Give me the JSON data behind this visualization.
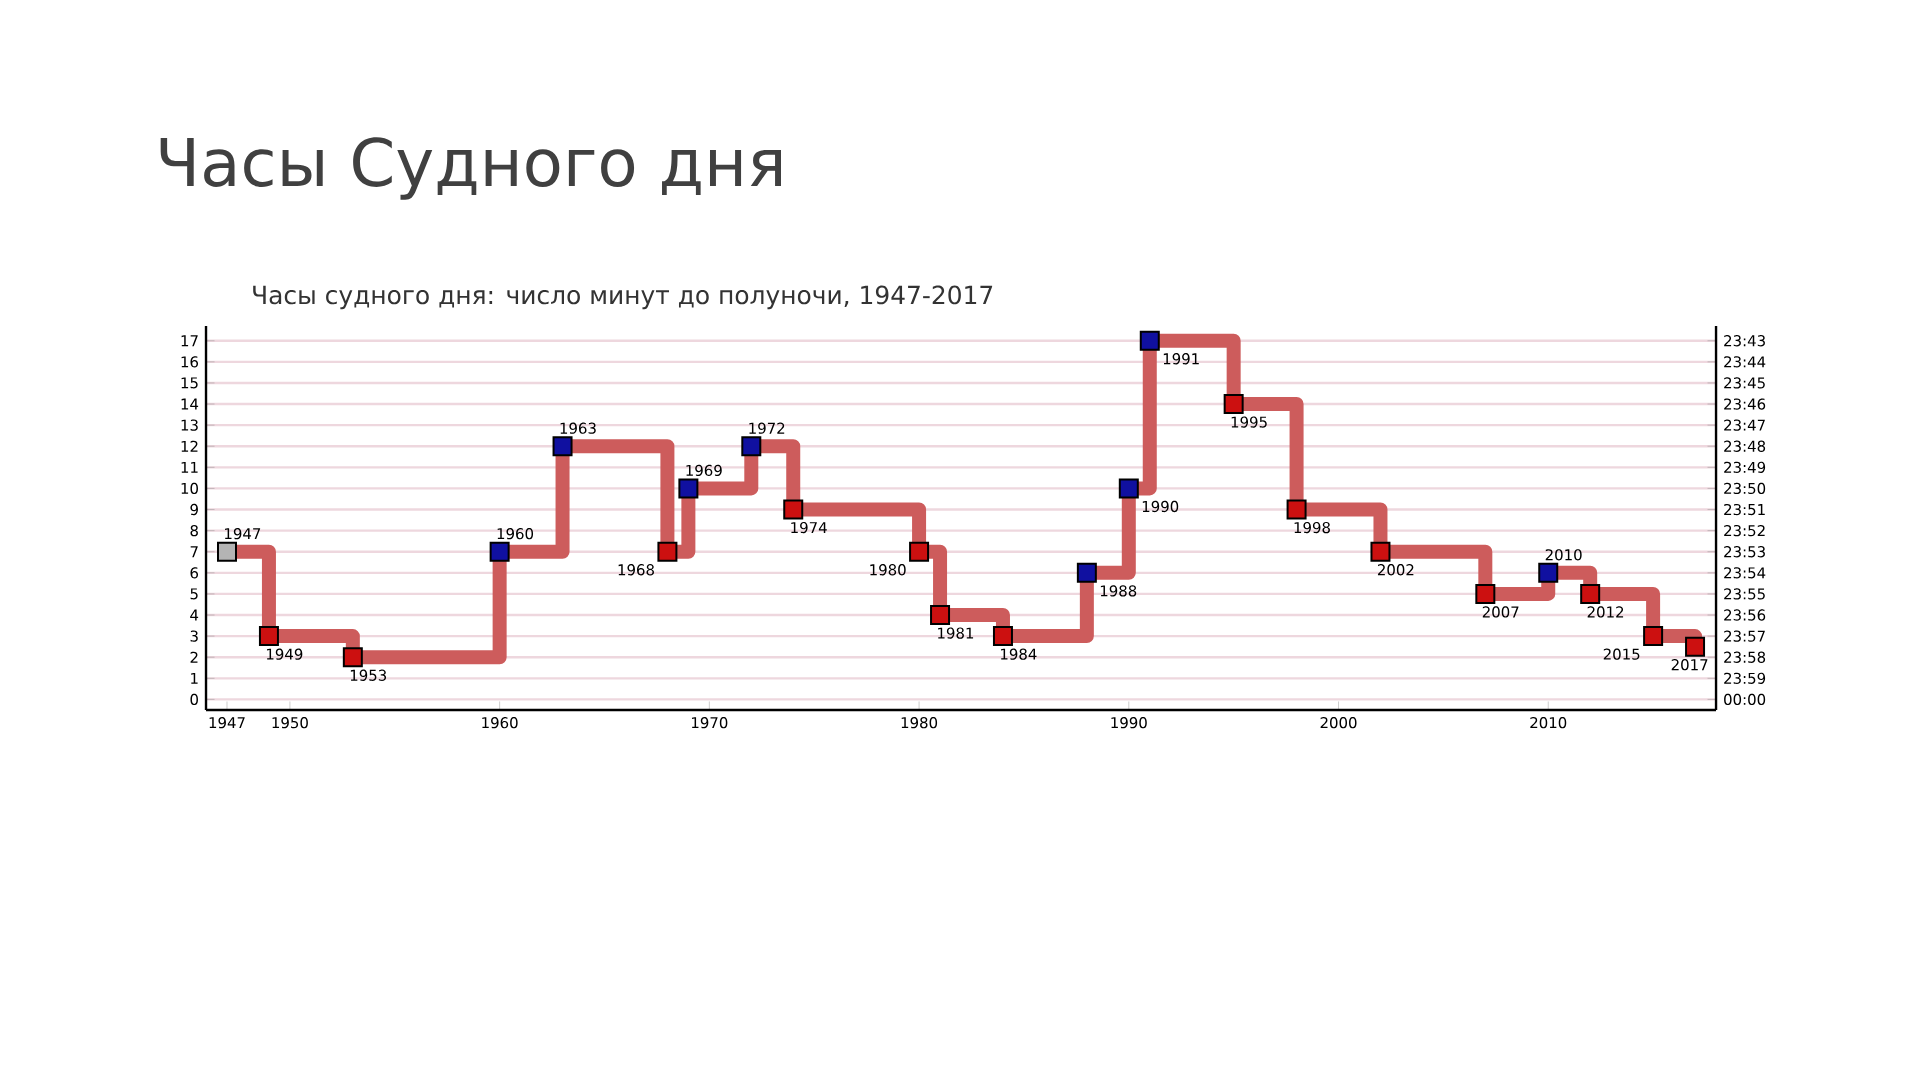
{
  "chart_data": {
    "type": "step",
    "title": "Часы Судного дня",
    "subtitle": "Часы судного дня: число минут до полуночи, 1947-2017",
    "x": [
      1947,
      1949,
      1953,
      1960,
      1963,
      1968,
      1969,
      1972,
      1974,
      1980,
      1981,
      1984,
      1988,
      1990,
      1991,
      1995,
      1998,
      2002,
      2007,
      2010,
      2012,
      2015,
      2017
    ],
    "series": [
      {
        "color": "#cd5c5c",
        "values": [
          7,
          3,
          2,
          7,
          12,
          7,
          10,
          12,
          9,
          7,
          4,
          3,
          6,
          10,
          17,
          14,
          9,
          7,
          5,
          6,
          5,
          3,
          2.5
        ],
        "colors": [
          "#b4b4b4",
          "#cc1010",
          "#cc1010",
          "#1010a0",
          "#1010a0",
          "#cc1010",
          "#1010a0",
          "#1010a0",
          "#cc1010",
          "#cc1010",
          "#cc1010",
          "#cc1010",
          "#1010a0",
          "#1010a0",
          "#1010a0",
          "#cc1010",
          "#cc1010",
          "#cc1010",
          "#cc1010",
          "#1010a0",
          "#cc1010",
          "#cc1010",
          "#cc1010"
        ]
      }
    ],
    "marker": "square",
    "grid": "y",
    "xlim": [
      1946,
      2018
    ],
    "xticks": [
      1947,
      1950,
      1960,
      1970,
      1980,
      1990,
      2000,
      2010
    ],
    "ylim": [
      -0.5,
      17.7
    ],
    "yticks": [
      0,
      1,
      2,
      3,
      4,
      5,
      6,
      7,
      8,
      9,
      10,
      11,
      12,
      13,
      14,
      15,
      16,
      17
    ],
    "y2lim": [
      24.008333,
      23.705
    ],
    "y2ticks": [
      {
        "value": 23.716667,
        "label": "23:43"
      },
      {
        "value": 23.733333,
        "label": "23:44"
      },
      {
        "value": 23.75,
        "label": "23:45"
      },
      {
        "value": 23.766667,
        "label": "23:46"
      },
      {
        "value": 23.783333,
        "label": "23:47"
      },
      {
        "value": 23.8,
        "label": "23:48"
      },
      {
        "value": 23.816667,
        "label": "23:49"
      },
      {
        "value": 23.833333,
        "label": "23:50"
      },
      {
        "value": 23.85,
        "label": "23:51"
      },
      {
        "value": 23.866667,
        "label": "23:52"
      },
      {
        "value": 23.883333,
        "label": "23:53"
      },
      {
        "value": 23.9,
        "label": "23:54"
      },
      {
        "value": 23.916667,
        "label": "23:55"
      },
      {
        "value": 23.933333,
        "label": "23:56"
      },
      {
        "value": 23.95,
        "label": "23:57"
      },
      {
        "value": 23.966667,
        "label": "23:58"
      },
      {
        "value": 23.983333,
        "label": "23:59"
      },
      {
        "value": 24,
        "label": "00:00"
      }
    ],
    "annotations": [
      {
        "text": "1947",
        "x": 1947,
        "y": 7
      },
      {
        "text": "1949",
        "x": 1949,
        "y": 3
      },
      {
        "text": "1953",
        "x": 1953,
        "y": 2
      },
      {
        "text": "1960",
        "x": 1960,
        "y": 7
      },
      {
        "text": "1963",
        "x": 1963,
        "y": 12
      },
      {
        "text": "1968",
        "x": 1968,
        "y": 7
      },
      {
        "text": "1969",
        "x": 1969,
        "y": 10
      },
      {
        "text": "1972",
        "x": 1972,
        "y": 12
      },
      {
        "text": "1974",
        "x": 1974,
        "y": 9
      },
      {
        "text": "1980",
        "x": 1980,
        "y": 7
      },
      {
        "text": "1981",
        "x": 1981,
        "y": 4
      },
      {
        "text": "1984",
        "x": 1984,
        "y": 3
      },
      {
        "text": "1988",
        "x": 1988,
        "y": 6
      },
      {
        "text": "1990",
        "x": 1990,
        "y": 10
      },
      {
        "text": "1991",
        "x": 1991,
        "y": 17
      },
      {
        "text": "1995",
        "x": 1995,
        "y": 14
      },
      {
        "text": "1998",
        "x": 1998,
        "y": 9
      },
      {
        "text": "2002",
        "x": 2002,
        "y": 7
      },
      {
        "text": "2007",
        "x": 2007,
        "y": 5
      },
      {
        "text": "2010",
        "x": 2010,
        "y": 6
      },
      {
        "text": "2012",
        "x": 2012,
        "y": 5
      },
      {
        "text": "2015",
        "x": 2015,
        "y": 3
      },
      {
        "text": "2017",
        "x": 2017,
        "y": 2.5
      }
    ]
  }
}
